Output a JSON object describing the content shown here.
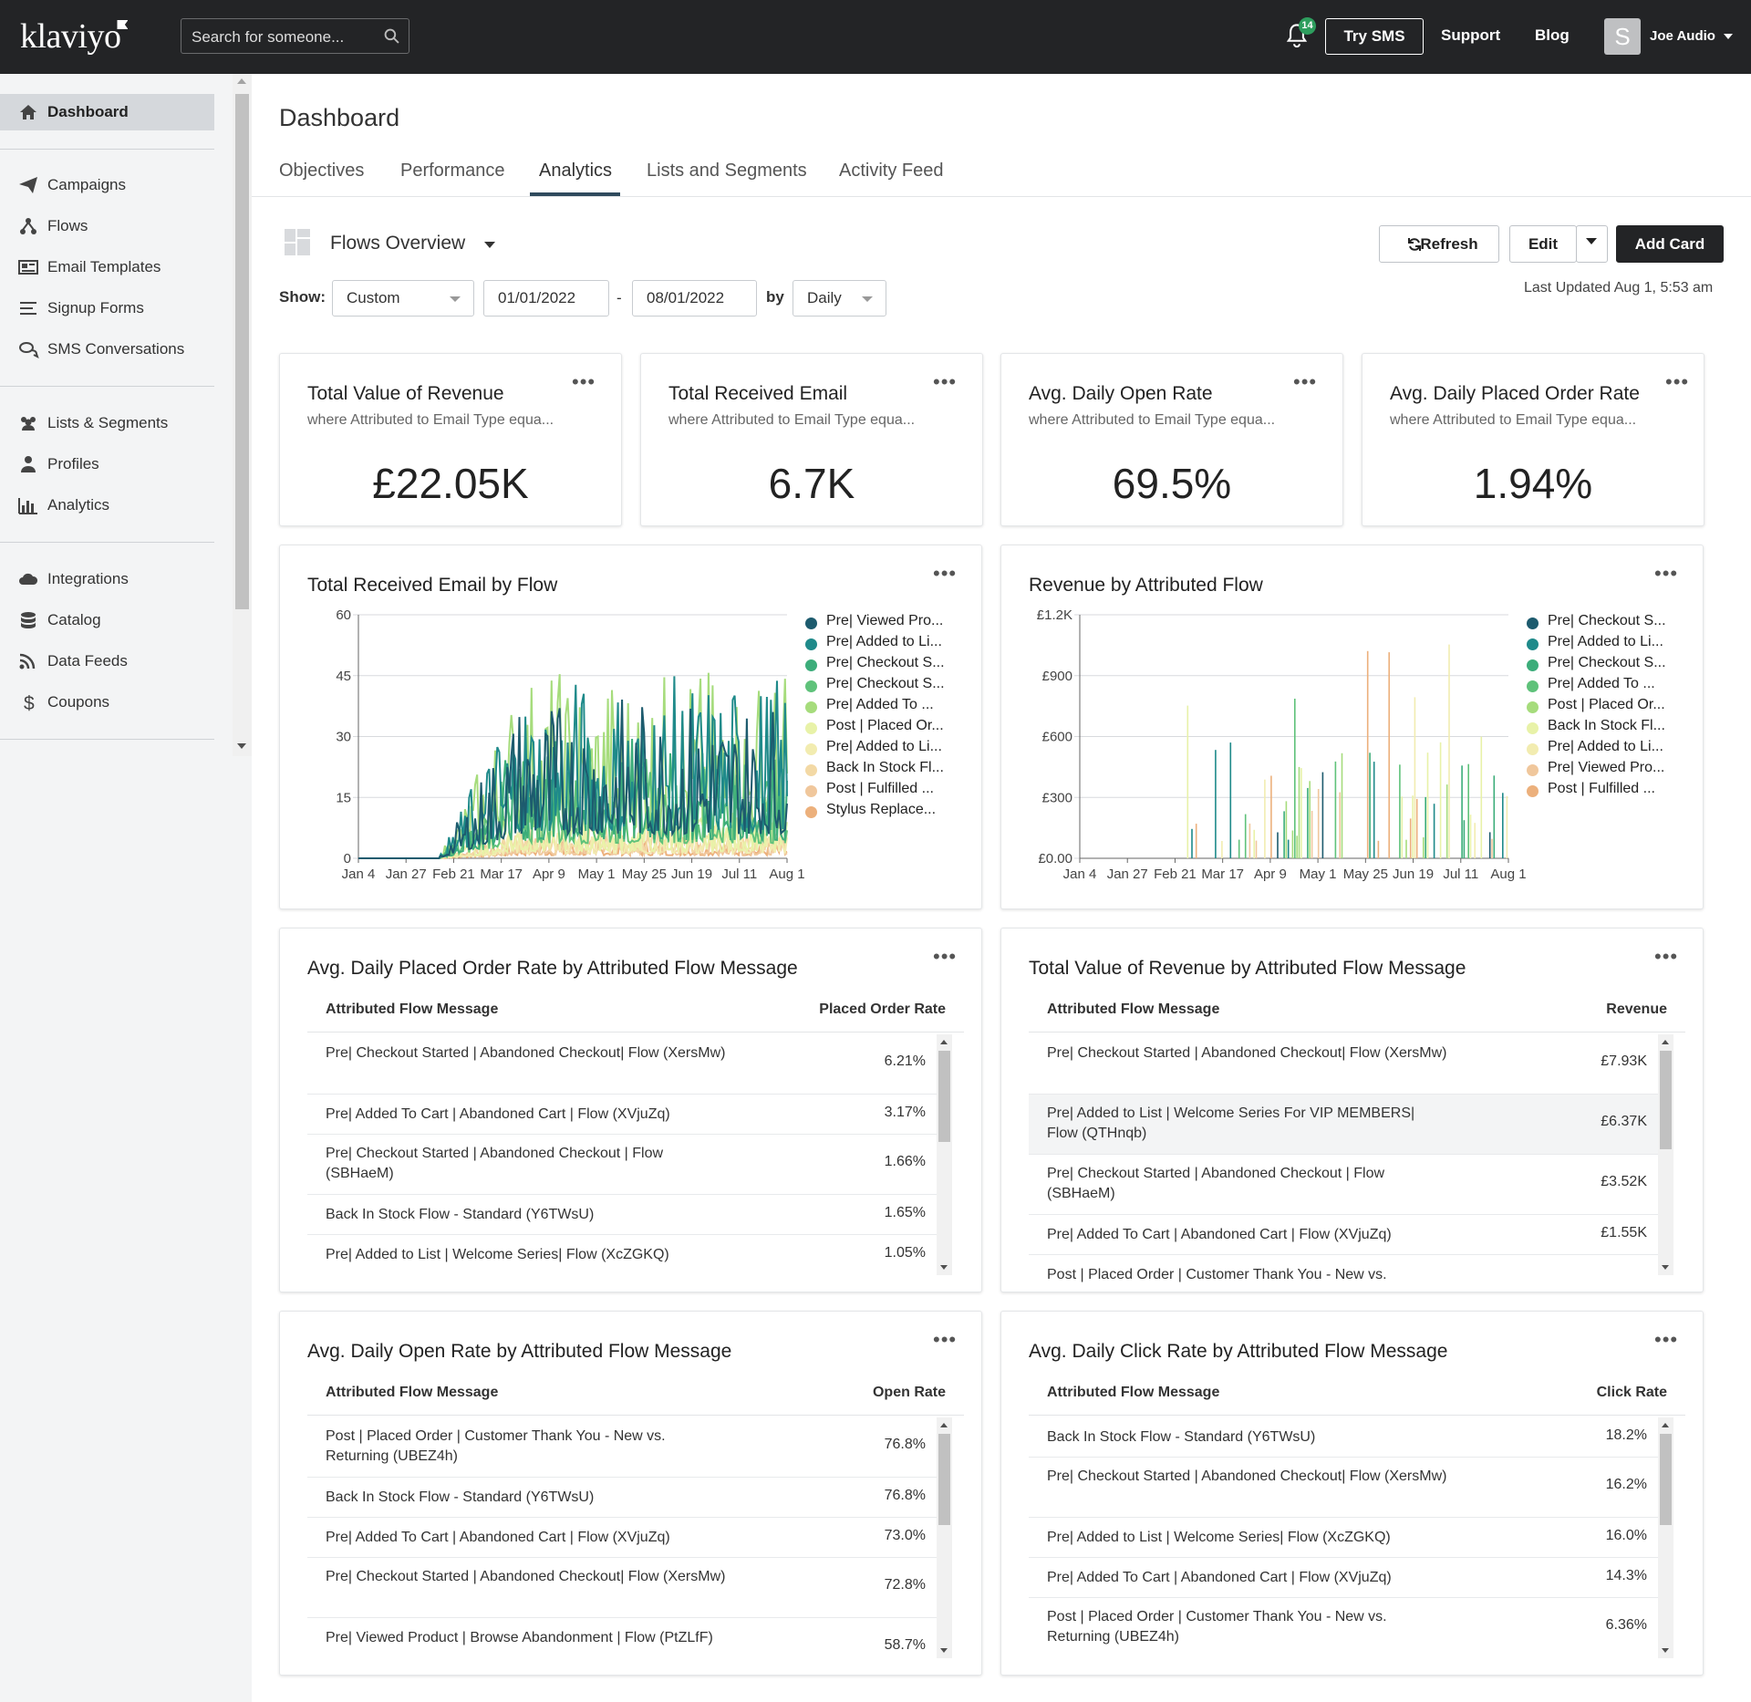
{
  "topbar": {
    "logo": "klaviyo",
    "search_placeholder": "Search for someone...",
    "notification_count": "14",
    "try_sms": "Try SMS",
    "support": "Support",
    "blog": "Blog",
    "avatar_initial": "S",
    "user_name": "Joe Audio"
  },
  "sidebar": {
    "items": [
      {
        "label": "Dashboard",
        "icon": "home-icon"
      },
      {
        "label": "Campaigns",
        "icon": "paper-plane-icon"
      },
      {
        "label": "Flows",
        "icon": "flow-icon"
      },
      {
        "label": "Email Templates",
        "icon": "newspaper-icon"
      },
      {
        "label": "Signup Forms",
        "icon": "list-icon"
      },
      {
        "label": "SMS Conversations",
        "icon": "chat-icon"
      },
      {
        "label": "Lists & Segments",
        "icon": "users-icon"
      },
      {
        "label": "Profiles",
        "icon": "user-icon"
      },
      {
        "label": "Analytics",
        "icon": "bar-chart-icon"
      },
      {
        "label": "Integrations",
        "icon": "cloud-icon"
      },
      {
        "label": "Catalog",
        "icon": "database-icon"
      },
      {
        "label": "Data Feeds",
        "icon": "rss-icon"
      },
      {
        "label": "Coupons",
        "icon": "dollar-icon"
      }
    ]
  },
  "page": {
    "title": "Dashboard",
    "tabs": [
      "Objectives",
      "Performance",
      "Analytics",
      "Lists and Segments",
      "Activity Feed"
    ],
    "active_tab": "Analytics"
  },
  "toolbar": {
    "dashboard_name": "Flows Overview",
    "refresh": "Refresh",
    "edit": "Edit",
    "add_card": "Add Card",
    "show_label": "Show:",
    "range": "Custom",
    "start_date": "01/01/2022",
    "date_sep": "-",
    "end_date": "08/01/2022",
    "by_label": "by",
    "interval": "Daily",
    "last_updated": "Last Updated Aug 1, 5:53 am"
  },
  "kpis": [
    {
      "title": "Total Value of Revenue",
      "subtitle": "where Attributed to Email Type equa...",
      "value": "£22.05K"
    },
    {
      "title": "Total Received Email",
      "subtitle": "where Attributed to Email Type equa...",
      "value": "6.7K"
    },
    {
      "title": "Avg. Daily Open Rate",
      "subtitle": "where Attributed to Email Type equa...",
      "value": "69.5%"
    },
    {
      "title": "Avg. Daily Placed Order Rate",
      "subtitle": "where Attributed to Email Type equa...",
      "value": "1.94%"
    }
  ],
  "colors": {
    "s1": "#1d5b6e",
    "s2": "#1f8a8a",
    "s3": "#3cad7a",
    "s4": "#5fc27a",
    "s5": "#a6dc7c",
    "s6": "#e8f2a8",
    "s7": "#f2ecb0",
    "s8": "#f3d9a5",
    "s9": "#f0c79c",
    "s10": "#ecb07c"
  },
  "chart_data": [
    {
      "type": "line",
      "title": "Total Received Email by Flow",
      "x_ticks": [
        "Jan 4",
        "Jan 27",
        "Feb 21",
        "Mar 17",
        "Apr 9",
        "May 1",
        "May 25",
        "Jun 19",
        "Jul 11",
        "Aug 1"
      ],
      "y_ticks": [
        "60",
        "45",
        "30",
        "15",
        "0"
      ],
      "ylim": [
        0,
        60
      ],
      "legend_position": "right",
      "series": [
        {
          "name": "Pre| Viewed Pro...",
          "color": "#1d5b6e",
          "peak": 40
        },
        {
          "name": "Pre| Added to Li...",
          "color": "#1f8a8a",
          "peak": 45
        },
        {
          "name": "Pre| Checkout S...",
          "color": "#3cad7a",
          "peak": 30
        },
        {
          "name": "Pre| Checkout S...",
          "color": "#5fc27a",
          "peak": 25
        },
        {
          "name": "Pre| Added To ...",
          "color": "#a6dc7c",
          "peak": 47
        },
        {
          "name": "Post | Placed Or...",
          "color": "#e8f2a8",
          "peak": 12
        },
        {
          "name": "Pre| Added to Li...",
          "color": "#f2ecb0",
          "peak": 8
        },
        {
          "name": "Back In Stock Fl...",
          "color": "#f3d9a5",
          "peak": 10
        },
        {
          "name": "Post | Fulfilled ...",
          "color": "#f0c79c",
          "peak": 6
        },
        {
          "name": "Stylus Replace...",
          "color": "#ecb07c",
          "peak": 5
        }
      ]
    },
    {
      "type": "bar",
      "title": "Revenue by Attributed Flow",
      "x_ticks": [
        "Jan 4",
        "Jan 27",
        "Feb 21",
        "Mar 17",
        "Apr 9",
        "May 1",
        "May 25",
        "Jun 19",
        "Jul 11",
        "Aug 1"
      ],
      "y_ticks": [
        "£1.2K",
        "£900",
        "£600",
        "£300",
        "£0.00"
      ],
      "ylim": [
        0,
        1200
      ],
      "legend_position": "right",
      "series": [
        {
          "name": "Pre| Checkout S...",
          "color": "#1d5b6e"
        },
        {
          "name": "Pre| Added to Li...",
          "color": "#1f8a8a"
        },
        {
          "name": "Pre| Checkout S...",
          "color": "#3cad7a"
        },
        {
          "name": "Pre| Added To ...",
          "color": "#5fc27a"
        },
        {
          "name": "Post | Placed Or...",
          "color": "#a6dc7c"
        },
        {
          "name": "Back In Stock Fl...",
          "color": "#e8f2a8"
        },
        {
          "name": "Pre| Added to Li...",
          "color": "#f2ecb0"
        },
        {
          "name": "Pre| Viewed Pro...",
          "color": "#f0c79c"
        },
        {
          "name": "Post | Fulfilled ...",
          "color": "#ecb07c"
        }
      ]
    },
    {
      "type": "table",
      "title": "Avg. Daily Placed Order Rate by Attributed Flow Message",
      "columns": [
        "Attributed Flow Message",
        "Placed Order Rate"
      ],
      "rows": [
        [
          "Pre| Checkout Started | Abandoned Checkout| Flow (XersMw)",
          "6.21%"
        ],
        [
          "Pre| Added To Cart | Abandoned Cart | Flow (XVjuZq)",
          "3.17%"
        ],
        [
          "Pre| Checkout Started | Abandoned Checkout | Flow (SBHaeM)",
          "1.66%"
        ],
        [
          "Back In Stock Flow - Standard (Y6TWsU)",
          "1.65%"
        ],
        [
          "Pre| Added to List | Welcome Series| Flow (XcZGKQ)",
          "1.05%"
        ]
      ]
    },
    {
      "type": "table",
      "title": "Total Value of Revenue by Attributed Flow Message",
      "columns": [
        "Attributed Flow Message",
        "Revenue"
      ],
      "rows": [
        [
          "Pre| Checkout Started | Abandoned Checkout| Flow (XersMw)",
          "£7.93K"
        ],
        [
          "Pre| Added to List | Welcome Series For VIP MEMBERS| Flow (QTHnqb)",
          "£6.37K"
        ],
        [
          "Pre| Checkout Started | Abandoned Checkout | Flow (SBHaeM)",
          "£3.52K"
        ],
        [
          "Pre| Added To Cart | Abandoned Cart | Flow (XVjuZq)",
          "£1.55K"
        ],
        [
          "Post | Placed Order | Customer Thank You - New vs.",
          ""
        ]
      ]
    },
    {
      "type": "table",
      "title": "Avg. Daily Open Rate by Attributed Flow Message",
      "columns": [
        "Attributed Flow Message",
        "Open Rate"
      ],
      "rows": [
        [
          "Post | Placed Order | Customer Thank You - New vs. Returning (UBEZ4h)",
          "76.8%"
        ],
        [
          "Back In Stock Flow - Standard (Y6TWsU)",
          "76.8%"
        ],
        [
          "Pre| Added To Cart | Abandoned Cart | Flow (XVjuZq)",
          "73.0%"
        ],
        [
          "Pre| Checkout Started | Abandoned Checkout| Flow (XersMw)",
          "72.8%"
        ],
        [
          "Pre| Viewed Product | Browse Abandonment | Flow (PtZLfF)",
          "58.7%"
        ]
      ]
    },
    {
      "type": "table",
      "title": "Avg. Daily Click Rate by Attributed Flow Message",
      "columns": [
        "Attributed Flow Message",
        "Click Rate"
      ],
      "rows": [
        [
          "Back In Stock Flow - Standard (Y6TWsU)",
          "18.2%"
        ],
        [
          "Pre| Checkout Started | Abandoned Checkout| Flow (XersMw)",
          "16.2%"
        ],
        [
          "Pre| Added to List | Welcome Series| Flow (XcZGKQ)",
          "16.0%"
        ],
        [
          "Pre| Added To Cart | Abandoned Cart | Flow (XVjuZq)",
          "14.3%"
        ],
        [
          "Post | Placed Order | Customer Thank You - New vs. Returning (UBEZ4h)",
          "6.36%"
        ]
      ]
    }
  ]
}
